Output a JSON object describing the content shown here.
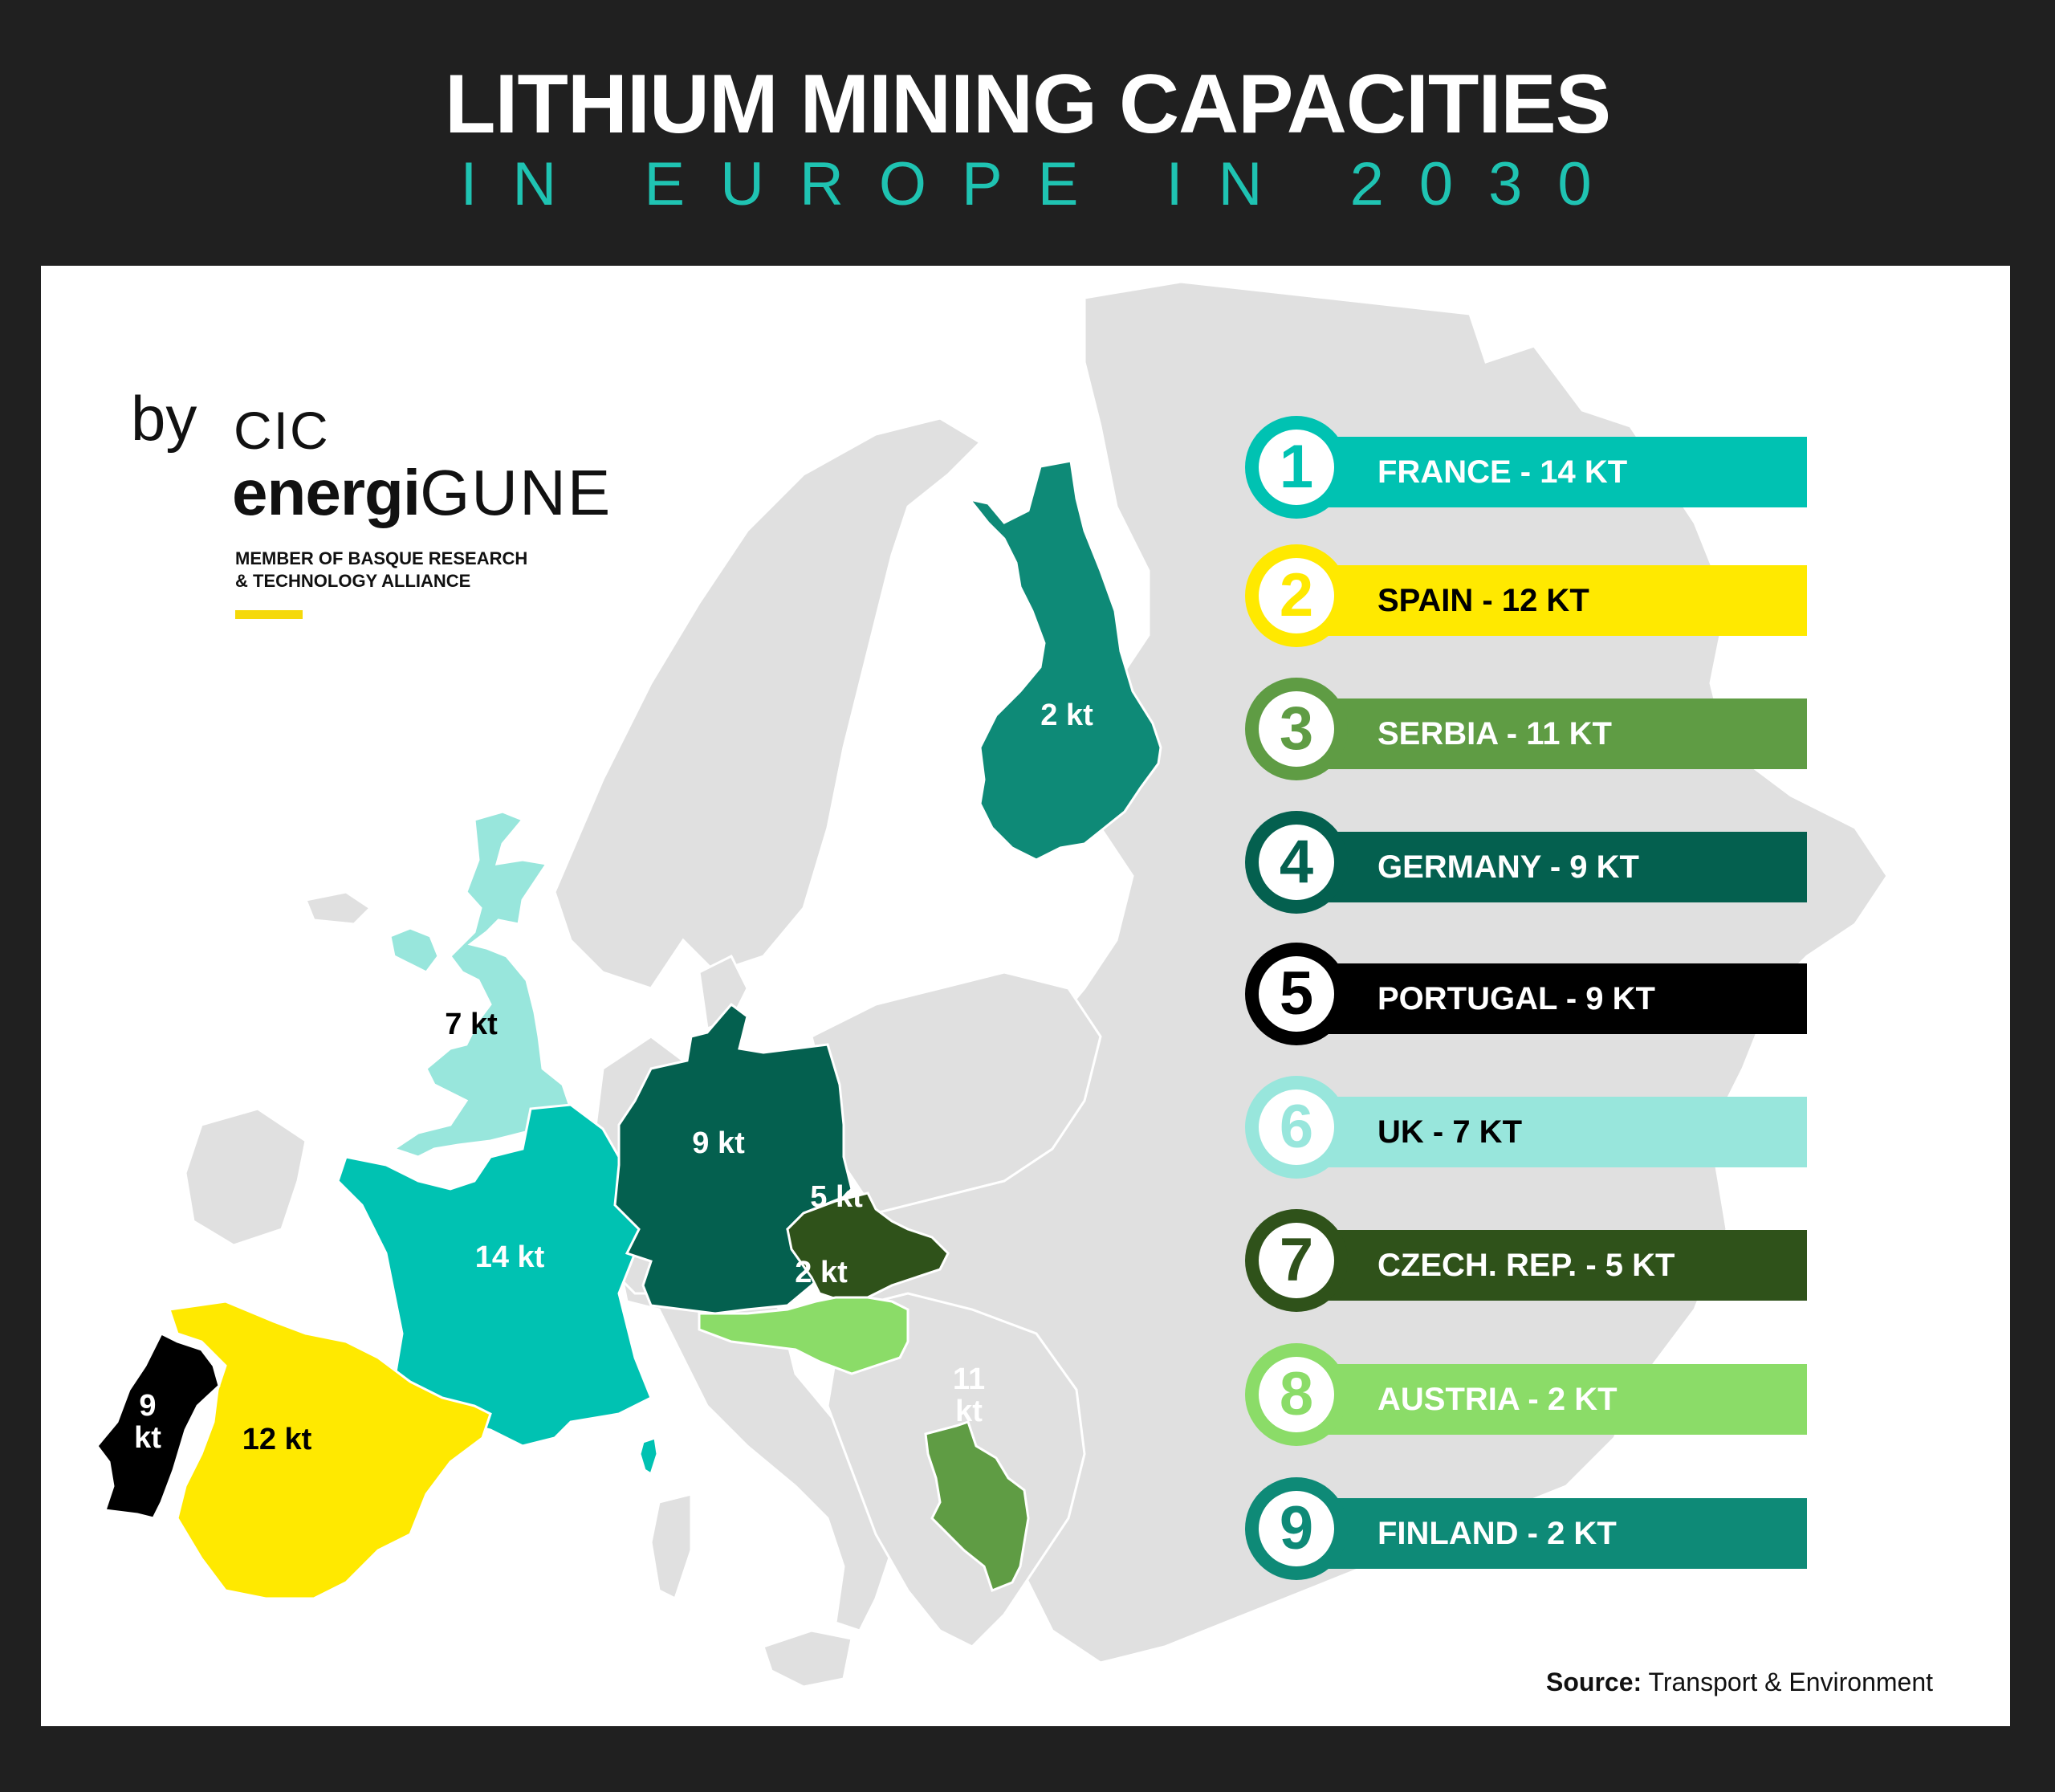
{
  "header": {
    "title": "LITHIUM MINING CAPACITIES",
    "subtitle": "IN EUROPE IN 2030",
    "title_color": "#ffffff",
    "subtitle_color": "#1fc3b2",
    "background": "#202020"
  },
  "logo": {
    "by": "by",
    "cic": "CIC",
    "energi": "energi",
    "gune": "GUNE",
    "member_line1": "MEMBER OF BASQUE RESEARCH",
    "member_line2": "& TECHNOLOGY ALLIANCE",
    "accent_color": "#f5d90a"
  },
  "legend": [
    {
      "rank": "1",
      "text": "FRANCE - 14 KT",
      "color": "#00c2b2",
      "text_color": "#ffffff"
    },
    {
      "rank": "2",
      "text": "SPAIN - 12 KT",
      "color": "#ffe900",
      "text_color": "#000000"
    },
    {
      "rank": "3",
      "text": "SERBIA - 11 KT",
      "color": "#5f9c44",
      "text_color": "#ffffff"
    },
    {
      "rank": "4",
      "text": "GERMANY - 9 KT",
      "color": "#04604f",
      "text_color": "#ffffff"
    },
    {
      "rank": "5",
      "text": "PORTUGAL - 9 KT",
      "color": "#000000",
      "text_color": "#ffffff"
    },
    {
      "rank": "6",
      "text": "UK - 7 KT",
      "color": "#98e6dc",
      "text_color": "#000000"
    },
    {
      "rank": "7",
      "text": "CZECH. REP. - 5 KT",
      "color": "#2f521a",
      "text_color": "#ffffff"
    },
    {
      "rank": "8",
      "text": "AUSTRIA - 2 KT",
      "color": "#8bdc68",
      "text_color": "#ffffff"
    },
    {
      "rank": "9",
      "text": "FINLAND - 2 KT",
      "color": "#0e8a77",
      "text_color": "#ffffff"
    }
  ],
  "map_labels": {
    "finland": "2 kt",
    "uk": "7 kt",
    "germany": "9 kt",
    "czech": "5 kt",
    "austria": "2 kt",
    "france": "14 kt",
    "spain": "12 kt",
    "portugal_value": "9",
    "portugal_unit": "kt",
    "serbia_value": "11",
    "serbia_unit": "kt"
  },
  "source": {
    "label": "Source:",
    "text": "Transport & Environment"
  },
  "chart_data": {
    "type": "choropleth-map",
    "title": "LITHIUM MINING CAPACITIES IN EUROPE IN 2030",
    "unit": "kt",
    "categories": [
      "France",
      "Spain",
      "Serbia",
      "Germany",
      "Portugal",
      "UK",
      "Czech Rep.",
      "Austria",
      "Finland"
    ],
    "values": [
      14,
      12,
      11,
      9,
      9,
      7,
      5,
      2,
      2
    ],
    "colors": [
      "#00c2b2",
      "#ffe900",
      "#5f9c44",
      "#04604f",
      "#000000",
      "#98e6dc",
      "#2f521a",
      "#8bdc68",
      "#0e8a77"
    ],
    "base_land_color": "#e0e0e0",
    "source": "Transport & Environment"
  }
}
